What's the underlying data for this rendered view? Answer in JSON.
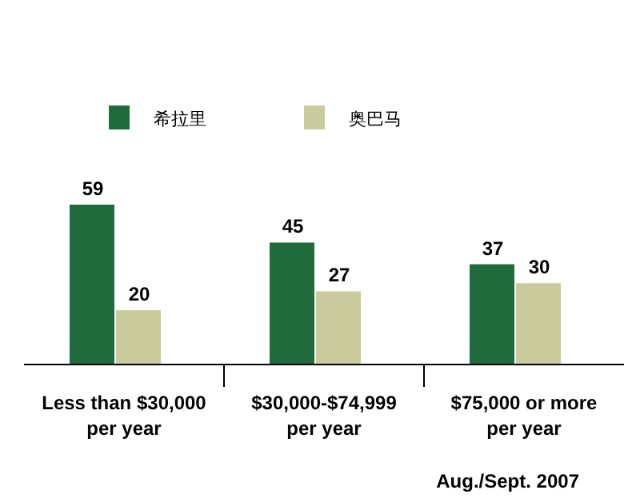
{
  "chart_data": {
    "type": "bar",
    "categories": [
      "Less than $30,000\nper year",
      "$30,000-$74,999\nper year",
      "$75,000 or more\nper year"
    ],
    "series": [
      {
        "name": "希拉里",
        "color": "#1f6b3b",
        "values": [
          59,
          45,
          37
        ]
      },
      {
        "name": "奥巴马",
        "color": "#c9cb9c",
        "values": [
          20,
          27,
          30
        ]
      }
    ],
    "data_labels": true,
    "legend": "top",
    "annotations": [
      "Aug./Sept. 2007"
    ]
  }
}
